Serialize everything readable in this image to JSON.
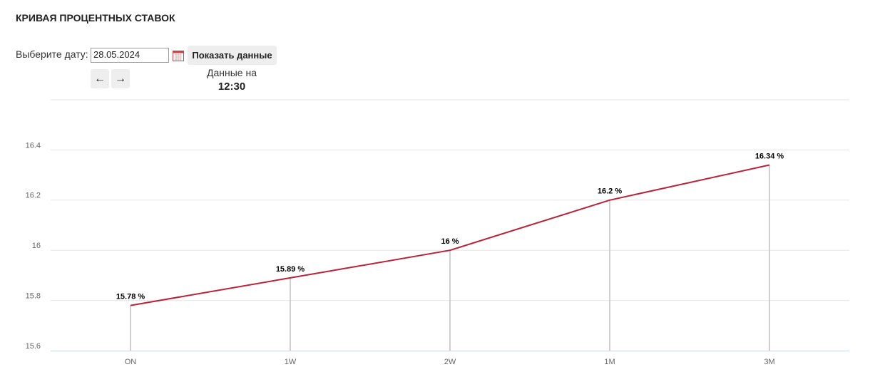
{
  "header": {
    "title": "КРИВАЯ ПРОЦЕНТНЫХ СТАВОК"
  },
  "form": {
    "date_label": "Выберите дату:",
    "date_value": "28.05.2024",
    "button": "Показать данные",
    "data_on": "Данные на",
    "time": "12:30"
  },
  "chart_data": {
    "type": "line",
    "categories": [
      "ON",
      "1W",
      "2W",
      "1M",
      "3M"
    ],
    "values": [
      15.78,
      15.89,
      16,
      16.2,
      16.34
    ],
    "value_labels": [
      "15.78 %",
      "15.89 %",
      "16 %",
      "16.2 %",
      "16.34 %"
    ],
    "color": "#b8233a",
    "ylim": [
      15.6,
      16.6
    ],
    "yticks": [
      15.6,
      15.8,
      16,
      16.2,
      16.4
    ],
    "grid": true
  }
}
